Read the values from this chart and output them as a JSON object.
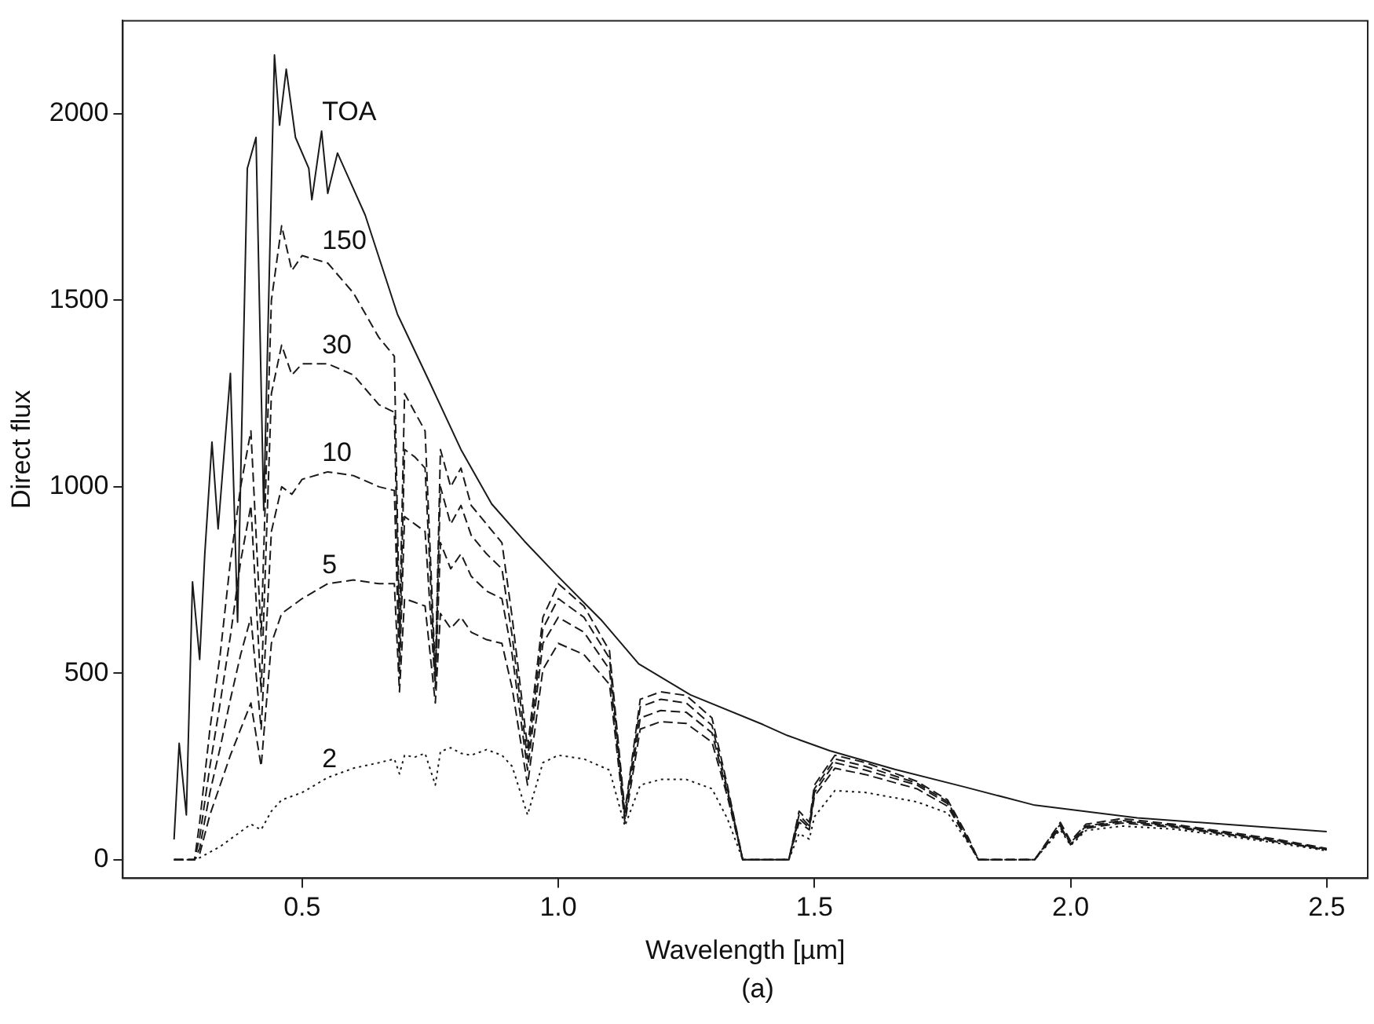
{
  "chart_data": {
    "type": "line",
    "xlabel": "Wavelength [µm]",
    "ylabel": "Direct flux",
    "annotations": [
      "(a)"
    ],
    "xlim": [
      0.15,
      2.58
    ],
    "ylim": [
      -50,
      2250
    ],
    "xticks": [
      {
        "value": 0.5,
        "label": "0.5"
      },
      {
        "value": 1,
        "label": "1.0"
      },
      {
        "value": 1.5,
        "label": "1.5"
      },
      {
        "value": 2,
        "label": "2.0"
      },
      {
        "value": 2.5,
        "label": "2.5"
      }
    ],
    "yticks": [
      0,
      500,
      1000,
      1500,
      2000
    ],
    "grid": false,
    "legend": false,
    "marker": "none",
    "x": [
      0.25,
      0.29,
      0.3,
      0.32,
      0.34,
      0.36,
      0.38,
      0.4,
      0.42,
      0.44,
      0.46,
      0.48,
      0.5,
      0.55,
      0.6,
      0.65,
      0.68,
      0.69,
      0.7,
      0.72,
      0.74,
      0.76,
      0.77,
      0.79,
      0.81,
      0.83,
      0.86,
      0.89,
      0.91,
      0.94,
      0.97,
      1.0,
      1.05,
      1.1,
      1.13,
      1.16,
      1.2,
      1.25,
      1.3,
      1.33,
      1.36,
      1.45,
      1.47,
      1.49,
      1.5,
      1.54,
      1.6,
      1.7,
      1.76,
      1.8,
      1.82,
      1.93,
      1.98,
      2.0,
      2.03,
      2.1,
      2.2,
      2.3,
      2.4,
      2.5
    ],
    "series": [
      {
        "name": "TOA",
        "color": "#1a1a1a",
        "line_style": "solid",
        "x": [
          0.25,
          0.26,
          0.274,
          0.286,
          0.3,
          0.31,
          0.324,
          0.336,
          0.36,
          0.374,
          0.393,
          0.41,
          0.425,
          0.446,
          0.456,
          0.469,
          0.487,
          0.513,
          0.519,
          0.538,
          0.55,
          0.569,
          0.623,
          0.686,
          0.748,
          0.81,
          0.87,
          0.934,
          0.997,
          1.085,
          1.157,
          1.258,
          1.4,
          1.447,
          1.53,
          1.657,
          1.79,
          1.93,
          2.13,
          2.5
        ],
        "values": [
          54,
          312,
          120,
          745,
          537,
          820,
          1120,
          887,
          1304,
          637,
          1854,
          1937,
          937,
          2158,
          1970,
          2120,
          1937,
          1854,
          1770,
          1954,
          1787,
          1895,
          1729,
          1463,
          1283,
          1100,
          954,
          854,
          763,
          641,
          525,
          442,
          362,
          333,
          292,
          242,
          196,
          146,
          112,
          75
        ]
      },
      {
        "name": "150",
        "color": "#1a1a1a",
        "line_style": "dashed",
        "values": [
          0,
          0,
          100,
          350,
          550,
          800,
          1000,
          1150,
          600,
          1500,
          1700,
          1580,
          1620,
          1600,
          1520,
          1400,
          1350,
          620,
          1250,
          1200,
          1150,
          500,
          1100,
          1000,
          1050,
          950,
          900,
          850,
          650,
          300,
          650,
          740,
          680,
          560,
          130,
          430,
          450,
          440,
          380,
          200,
          0,
          0,
          130,
          100,
          200,
          280,
          260,
          210,
          160,
          60,
          0,
          0,
          100,
          50,
          95,
          110,
          95,
          75,
          55,
          30
        ]
      },
      {
        "name": "30",
        "color": "#1a1a1a",
        "line_style": "dashed",
        "values": [
          0,
          0,
          60,
          250,
          420,
          600,
          800,
          950,
          450,
          1250,
          1380,
          1300,
          1330,
          1330,
          1300,
          1220,
          1200,
          550,
          1100,
          1080,
          1050,
          480,
          1000,
          900,
          950,
          870,
          820,
          780,
          600,
          270,
          620,
          700,
          650,
          540,
          120,
          410,
          430,
          420,
          360,
          190,
          0,
          0,
          120,
          90,
          190,
          270,
          250,
          205,
          155,
          55,
          0,
          0,
          95,
          45,
          90,
          105,
          92,
          72,
          52,
          28
        ]
      },
      {
        "name": "10",
        "color": "#1a1a1a",
        "line_style": "dashed",
        "values": [
          0,
          0,
          30,
          180,
          300,
          430,
          550,
          650,
          350,
          880,
          1000,
          980,
          1020,
          1040,
          1030,
          1000,
          990,
          500,
          920,
          900,
          880,
          460,
          850,
          780,
          820,
          760,
          720,
          700,
          550,
          240,
          580,
          650,
          610,
          510,
          110,
          380,
          400,
          395,
          340,
          180,
          0,
          0,
          110,
          85,
          180,
          260,
          240,
          200,
          150,
          50,
          0,
          0,
          90,
          42,
          87,
          102,
          90,
          70,
          50,
          27
        ]
      },
      {
        "name": "5",
        "color": "#1a1a1a",
        "line_style": "dashed",
        "values": [
          0,
          0,
          15,
          120,
          200,
          280,
          350,
          420,
          250,
          580,
          660,
          680,
          700,
          740,
          750,
          740,
          740,
          450,
          700,
          690,
          680,
          420,
          660,
          620,
          650,
          610,
          590,
          580,
          460,
          200,
          510,
          580,
          550,
          470,
          100,
          350,
          370,
          365,
          315,
          170,
          0,
          0,
          100,
          80,
          170,
          245,
          228,
          190,
          143,
          48,
          0,
          0,
          86,
          40,
          84,
          98,
          87,
          68,
          48,
          26
        ]
      },
      {
        "name": "2",
        "color": "#1a1a1a",
        "line_style": "dotted",
        "values": [
          0,
          0,
          5,
          20,
          35,
          55,
          75,
          95,
          80,
          130,
          160,
          170,
          180,
          220,
          245,
          260,
          270,
          230,
          280,
          275,
          285,
          200,
          290,
          300,
          285,
          280,
          295,
          280,
          250,
          120,
          260,
          280,
          270,
          240,
          90,
          200,
          215,
          215,
          190,
          110,
          0,
          0,
          70,
          55,
          115,
          185,
          180,
          155,
          125,
          45,
          0,
          0,
          80,
          38,
          78,
          90,
          82,
          64,
          45,
          24
        ]
      }
    ]
  }
}
